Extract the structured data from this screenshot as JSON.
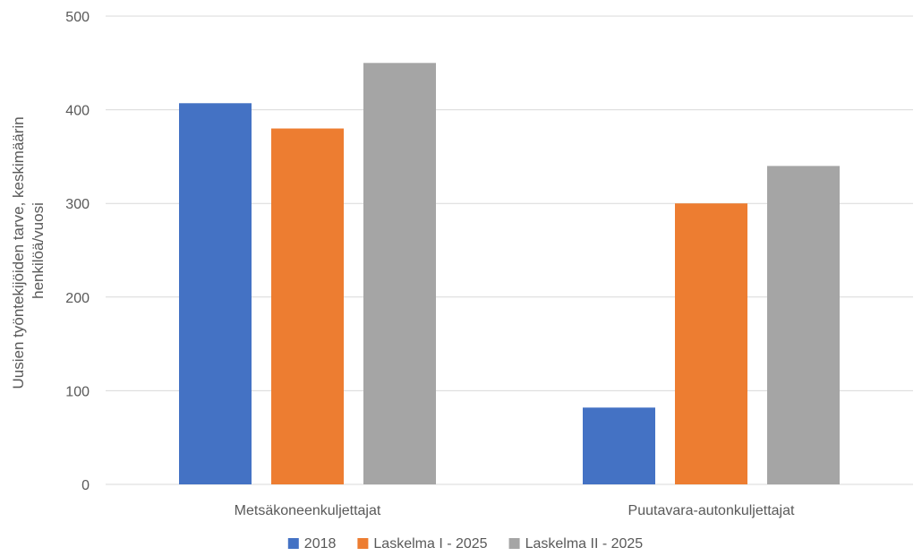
{
  "chart_data": {
    "type": "bar",
    "title": "",
    "xlabel": "",
    "ylabel_lines": [
      "Uusien työntekijöiden tarve, keskimäärin",
      "henkilöä/vuosi"
    ],
    "ylim": [
      0,
      500
    ],
    "yticks": [
      0,
      100,
      200,
      300,
      400,
      500
    ],
    "grid": true,
    "legend_position": "bottom",
    "categories": [
      "Metsäkoneenkuljettajat",
      "Puutavara-autonkuljettajat"
    ],
    "series": [
      {
        "name": "2018",
        "color": "#4472c4",
        "values": [
          407,
          82
        ]
      },
      {
        "name": "Laskelma I - 2025",
        "color": "#ed7d31",
        "values": [
          380,
          300
        ]
      },
      {
        "name": "Laskelma II - 2025",
        "color": "#a5a5a5",
        "values": [
          450,
          340
        ]
      }
    ]
  }
}
